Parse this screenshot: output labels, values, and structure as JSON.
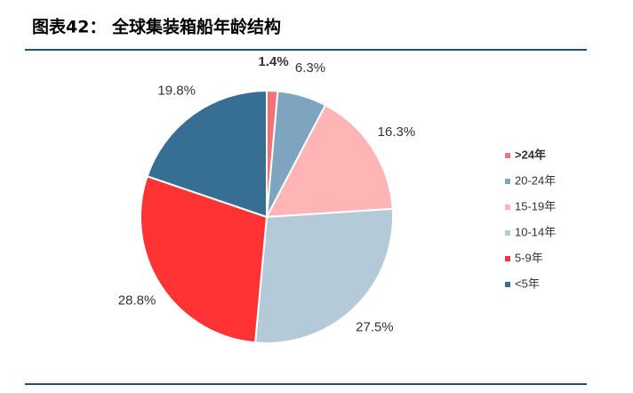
{
  "chart_data": {
    "type": "pie",
    "title": "图表42：  全球集装箱船年龄结构",
    "categories": [
      ">24年",
      "20-24年",
      "15-19年",
      "10-14年",
      "5-9年",
      "<5年"
    ],
    "values": [
      1.4,
      6.3,
      16.3,
      27.5,
      28.8,
      19.8
    ],
    "value_labels": [
      "1.4%",
      "6.3%",
      "16.3%",
      "27.5%",
      "28.8%",
      "19.8%"
    ],
    "colors": [
      "#f0737c",
      "#7fa4c0",
      "#ffb5b5",
      "#b5cad9",
      "#ff3333",
      "#376f94"
    ],
    "legend": "right"
  }
}
